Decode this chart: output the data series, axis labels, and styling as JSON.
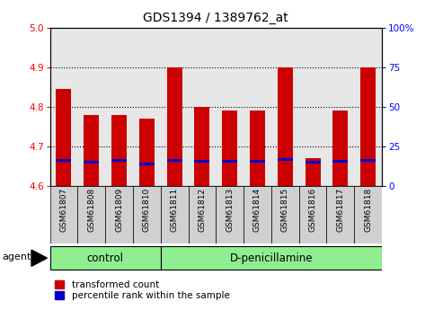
{
  "title": "GDS1394 / 1389762_at",
  "samples": [
    "GSM61807",
    "GSM61808",
    "GSM61809",
    "GSM61810",
    "GSM61811",
    "GSM61812",
    "GSM61813",
    "GSM61814",
    "GSM61815",
    "GSM61816",
    "GSM61817",
    "GSM61818"
  ],
  "red_values": [
    4.845,
    4.78,
    4.78,
    4.77,
    4.9,
    4.8,
    4.79,
    4.79,
    4.9,
    4.67,
    4.79,
    4.9
  ],
  "blue_values": [
    4.665,
    4.66,
    4.665,
    4.655,
    4.665,
    4.662,
    4.662,
    4.662,
    4.668,
    4.66,
    4.662,
    4.665
  ],
  "base": 4.6,
  "ylim_left": [
    4.6,
    5.0
  ],
  "ylim_right": [
    0,
    100
  ],
  "yticks_left": [
    4.6,
    4.7,
    4.8,
    4.9,
    5.0
  ],
  "yticks_right": [
    0,
    25,
    50,
    75,
    100
  ],
  "ytick_labels_right": [
    "0",
    "25",
    "50",
    "75",
    "100%"
  ],
  "bar_color": "#CC0000",
  "blue_color": "#0000CC",
  "bar_width": 0.55,
  "bg_label": "#d0d0d0",
  "green_color": "#90EE90",
  "legend_labels": [
    "transformed count",
    "percentile rank within the sample"
  ]
}
